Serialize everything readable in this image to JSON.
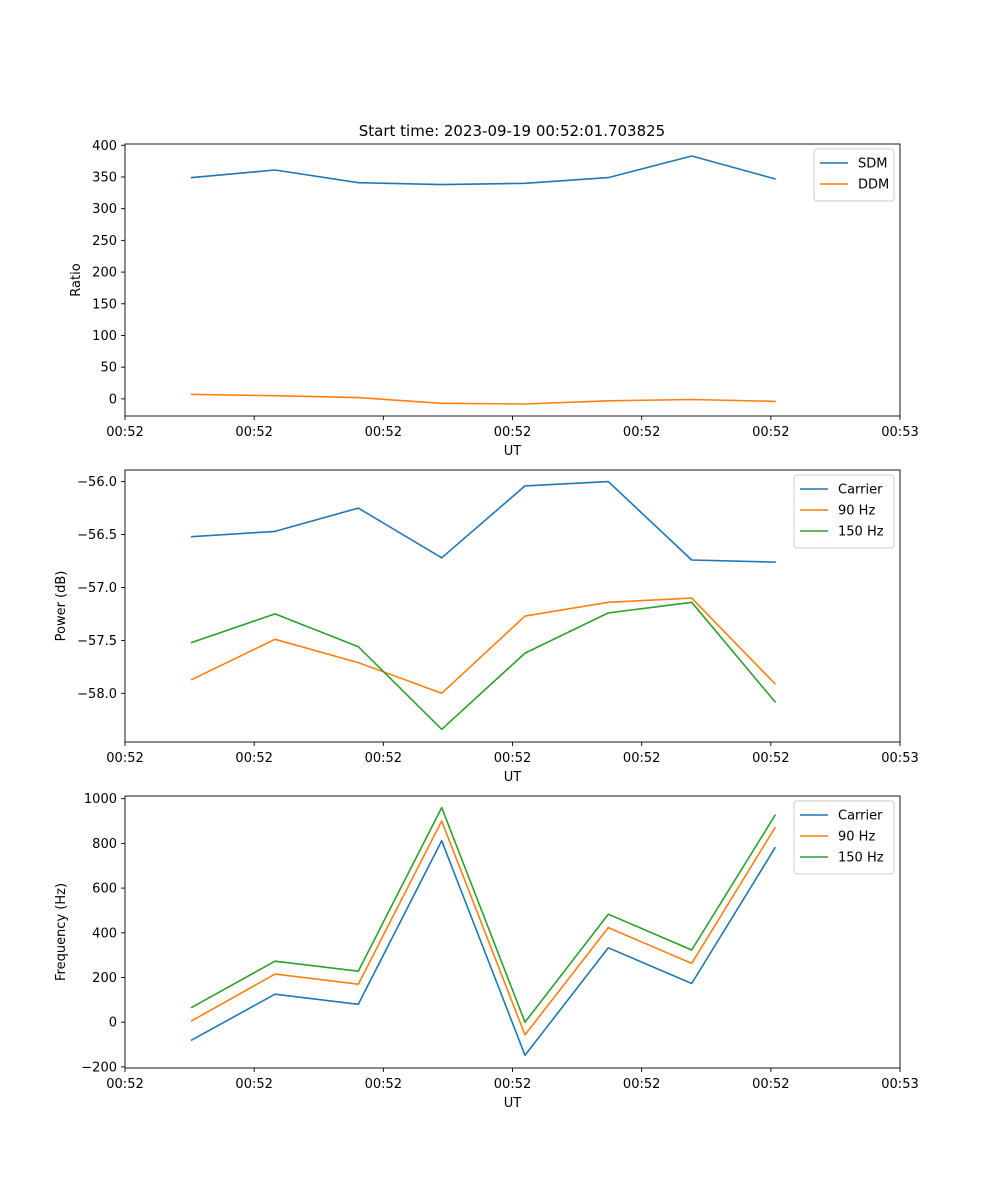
{
  "figure_title": "Start time: 2023-09-19 00:52:01.703825",
  "chart_data": [
    {
      "type": "line",
      "title": "Start time: 2023-09-19 00:52:01.703825",
      "xlabel": "UT",
      "ylabel": "Ratio",
      "x": [
        1,
        2,
        3,
        4,
        5,
        6,
        7,
        8
      ],
      "xlim": [
        0.2,
        9.5
      ],
      "x_ticks": [
        0.2,
        1.75,
        3.3,
        4.85,
        6.4,
        7.95,
        9.5
      ],
      "x_tick_labels": [
        "00:52",
        "00:52",
        "00:52",
        "00:52",
        "00:52",
        "00:52",
        "00:53"
      ],
      "ylim": [
        -27,
        402
      ],
      "y_ticks": [
        0,
        50,
        100,
        150,
        200,
        250,
        300,
        350,
        400
      ],
      "y_tick_labels": [
        "0",
        "50",
        "100",
        "150",
        "200",
        "250",
        "300",
        "350",
        "400"
      ],
      "legend": "top-right",
      "series": [
        {
          "name": "SDM",
          "color": "#1f77b4",
          "values": [
            349,
            361,
            341,
            338,
            340,
            349,
            383,
            347
          ]
        },
        {
          "name": "DDM",
          "color": "#ff7f0e",
          "values": [
            7,
            5,
            2,
            -7,
            -8,
            -3,
            -1,
            -4
          ]
        }
      ]
    },
    {
      "type": "line",
      "title": "",
      "xlabel": "UT",
      "ylabel": "Power (dB)",
      "x": [
        1,
        2,
        3,
        4,
        5,
        6,
        7,
        8
      ],
      "xlim": [
        0.2,
        9.5
      ],
      "x_ticks": [
        0.2,
        1.75,
        3.3,
        4.85,
        6.4,
        7.95,
        9.5
      ],
      "x_tick_labels": [
        "00:52",
        "00:52",
        "00:52",
        "00:52",
        "00:52",
        "00:52",
        "00:53"
      ],
      "ylim": [
        -58.46,
        -55.89
      ],
      "y_ticks": [
        -58.0,
        -57.5,
        -57.0,
        -56.5,
        -56.0
      ],
      "y_tick_labels": [
        "−58.0",
        "−57.5",
        "−57.0",
        "−56.5",
        "−56.0"
      ],
      "legend": "top-right",
      "series": [
        {
          "name": "Carrier",
          "color": "#1f77b4",
          "values": [
            -56.52,
            -56.47,
            -56.25,
            -56.72,
            -56.04,
            -56.0,
            -56.74,
            -56.76
          ]
        },
        {
          "name": "90 Hz",
          "color": "#ff7f0e",
          "values": [
            -57.87,
            -57.49,
            -57.71,
            -58.0,
            -57.27,
            -57.14,
            -57.1,
            -57.91
          ]
        },
        {
          "name": "150 Hz",
          "color": "#2ca02c",
          "values": [
            -57.52,
            -57.25,
            -57.56,
            -58.34,
            -57.62,
            -57.24,
            -57.14,
            -58.08
          ]
        }
      ]
    },
    {
      "type": "line",
      "title": "",
      "xlabel": "UT",
      "ylabel": "Frequency (Hz)",
      "x": [
        1,
        2,
        3,
        4,
        5,
        6,
        7,
        8
      ],
      "xlim": [
        0.2,
        9.5
      ],
      "x_ticks": [
        0.2,
        1.75,
        3.3,
        4.85,
        6.4,
        7.95,
        9.5
      ],
      "x_tick_labels": [
        "00:52",
        "00:52",
        "00:52",
        "00:52",
        "00:52",
        "00:52",
        "00:53"
      ],
      "ylim": [
        -205,
        1012
      ],
      "y_ticks": [
        -200,
        0,
        200,
        400,
        600,
        800,
        1000
      ],
      "y_tick_labels": [
        "−200",
        "0",
        "200",
        "400",
        "600",
        "800",
        "1000"
      ],
      "legend": "top-right",
      "series": [
        {
          "name": "Carrier",
          "color": "#1f77b4",
          "values": [
            -80,
            125,
            80,
            812,
            -148,
            333,
            173,
            780
          ]
        },
        {
          "name": "90 Hz",
          "color": "#ff7f0e",
          "values": [
            6,
            215,
            170,
            900,
            -57,
            423,
            263,
            870
          ]
        },
        {
          "name": "150 Hz",
          "color": "#2ca02c",
          "values": [
            66,
            273,
            228,
            960,
            0,
            483,
            323,
            925
          ]
        }
      ]
    }
  ]
}
